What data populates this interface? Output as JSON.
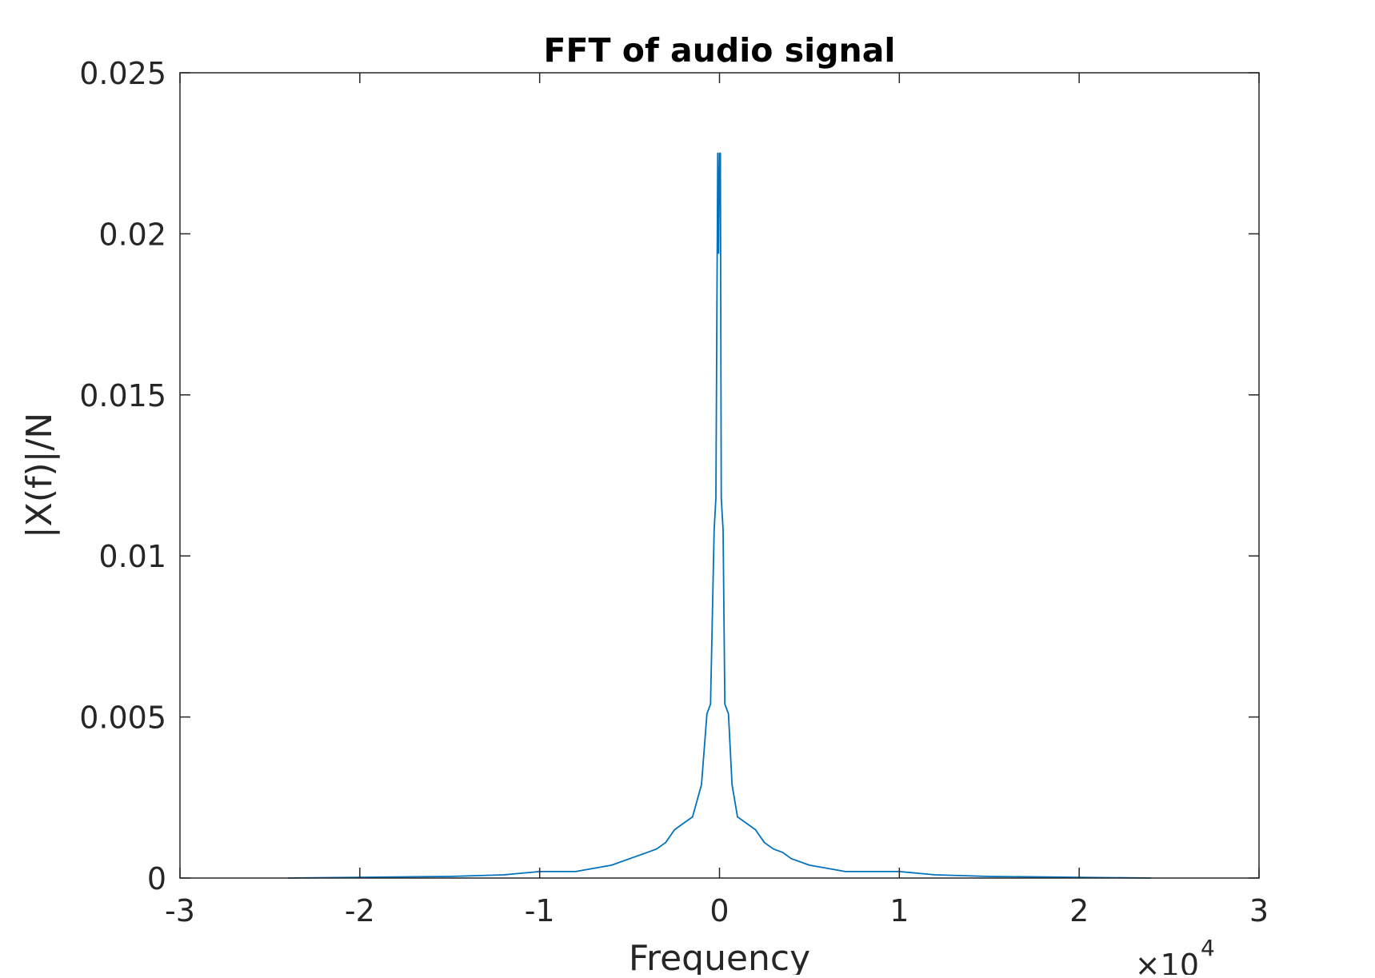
{
  "chart_data": {
    "type": "line",
    "title": "FFT of audio signal",
    "xlabel": "Frequency",
    "ylabel": "|X(f)|/N",
    "xlim": [
      -3,
      3
    ],
    "ylim": [
      0,
      0.025
    ],
    "x_multiplier": "×10",
    "x_multiplier_exponent": "4",
    "x_ticks": [
      "-3",
      "-2",
      "-1",
      "0",
      "1",
      "2",
      "3"
    ],
    "y_ticks": [
      "0",
      "0.005",
      "0.01",
      "0.015",
      "0.02",
      "0.025"
    ],
    "grid": false,
    "legend": "none",
    "line_color": "#0072BD",
    "series": [
      {
        "x": [
          -2.4,
          -1.5,
          -1.2,
          -1.0,
          -0.9,
          -0.8,
          -0.7,
          -0.6,
          -0.5,
          -0.4,
          -0.35,
          -0.3,
          -0.25,
          -0.2,
          -0.15,
          -0.1,
          -0.07,
          -0.05,
          -0.03,
          -0.02,
          -0.01,
          -0.005,
          0.0,
          0.005,
          0.01,
          0.02,
          0.03,
          0.05,
          0.07,
          0.1,
          0.15,
          0.2,
          0.25,
          0.3,
          0.35,
          0.4,
          0.5,
          0.6,
          0.7,
          0.8,
          0.9,
          1.0,
          1.2,
          1.5,
          2.4
        ],
        "y": [
          0.0,
          5e-05,
          0.0001,
          0.0002,
          0.0002,
          0.0002,
          0.0003,
          0.0004,
          0.0006,
          0.0008,
          0.0009,
          0.0011,
          0.0015,
          0.0017,
          0.0019,
          0.0029,
          0.0051,
          0.0054,
          0.0108,
          0.0118,
          0.0225,
          0.0194,
          0.0225,
          0.0225,
          0.0118,
          0.0108,
          0.0054,
          0.0051,
          0.0029,
          0.0019,
          0.0017,
          0.0015,
          0.0011,
          0.0009,
          0.0008,
          0.0006,
          0.0004,
          0.0003,
          0.0002,
          0.0002,
          0.0002,
          0.0002,
          0.0001,
          5e-05,
          0.0
        ]
      }
    ]
  }
}
